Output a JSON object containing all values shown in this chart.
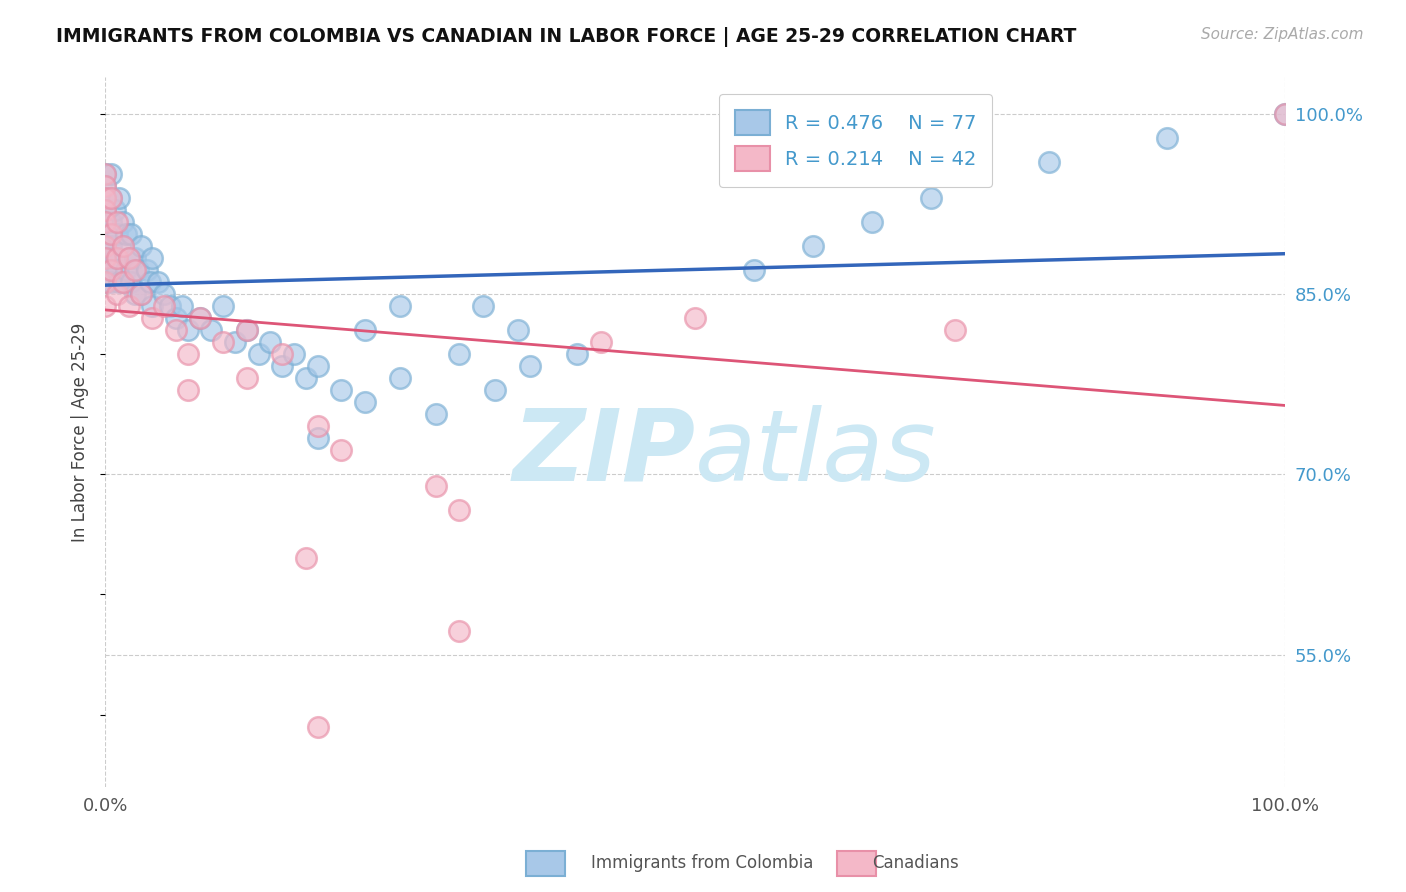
{
  "title": "IMMIGRANTS FROM COLOMBIA VS CANADIAN IN LABOR FORCE | AGE 25-29 CORRELATION CHART",
  "source": "Source: ZipAtlas.com",
  "ylabel": "In Labor Force | Age 25-29",
  "xlim": [
    0.0,
    1.0
  ],
  "ylim": [
    0.44,
    1.03
  ],
  "yticks": [
    0.55,
    0.7,
    0.85,
    1.0
  ],
  "ytick_labels": [
    "55.0%",
    "70.0%",
    "85.0%",
    "100.0%"
  ],
  "xtick_labels": [
    "0.0%",
    "100.0%"
  ],
  "xticks": [
    0.0,
    1.0
  ],
  "legend_r_blue": "R = 0.476",
  "legend_n_blue": "N = 77",
  "legend_r_pink": "R = 0.214",
  "legend_n_pink": "N = 42",
  "blue_color": "#a8c8e8",
  "blue_edge_color": "#7bafd4",
  "pink_color": "#f4b8c8",
  "pink_edge_color": "#e890a8",
  "blue_line_color": "#3366bb",
  "pink_line_color": "#dd5577",
  "legend_text_color": "#4499cc",
  "ytick_color": "#4499cc",
  "watermark_color": "#cce8f4",
  "background_color": "#ffffff",
  "grid_color": "#cccccc",
  "blue_x": [
    0.0,
    0.0,
    0.0,
    0.0,
    0.0,
    0.0,
    0.0,
    0.0,
    0.0,
    0.0,
    0.005,
    0.005,
    0.005,
    0.005,
    0.005,
    0.005,
    0.005,
    0.008,
    0.008,
    0.01,
    0.01,
    0.012,
    0.012,
    0.015,
    0.015,
    0.015,
    0.018,
    0.018,
    0.02,
    0.022,
    0.022,
    0.025,
    0.025,
    0.028,
    0.03,
    0.03,
    0.035,
    0.038,
    0.04,
    0.04,
    0.045,
    0.05,
    0.055,
    0.06,
    0.065,
    0.07,
    0.08,
    0.09,
    0.1,
    0.11,
    0.12,
    0.13,
    0.14,
    0.15,
    0.16,
    0.17,
    0.18,
    0.2,
    0.22,
    0.25,
    0.28,
    0.3,
    0.33,
    0.36,
    0.4,
    0.35,
    0.22,
    0.25,
    0.55,
    0.6,
    0.65,
    0.7,
    0.8,
    0.9,
    1.0,
    0.18,
    0.32
  ],
  "blue_y": [
    0.95,
    0.94,
    0.93,
    0.92,
    0.91,
    0.9,
    0.89,
    0.88,
    0.87,
    0.86,
    0.95,
    0.93,
    0.91,
    0.89,
    0.88,
    0.87,
    0.86,
    0.92,
    0.88,
    0.9,
    0.87,
    0.93,
    0.86,
    0.91,
    0.89,
    0.86,
    0.9,
    0.87,
    0.88,
    0.9,
    0.86,
    0.88,
    0.85,
    0.87,
    0.89,
    0.85,
    0.87,
    0.86,
    0.88,
    0.84,
    0.86,
    0.85,
    0.84,
    0.83,
    0.84,
    0.82,
    0.83,
    0.82,
    0.84,
    0.81,
    0.82,
    0.8,
    0.81,
    0.79,
    0.8,
    0.78,
    0.79,
    0.77,
    0.76,
    0.78,
    0.75,
    0.8,
    0.77,
    0.79,
    0.8,
    0.82,
    0.82,
    0.84,
    0.87,
    0.89,
    0.91,
    0.93,
    0.96,
    0.98,
    1.0,
    0.73,
    0.84
  ],
  "pink_x": [
    0.0,
    0.0,
    0.0,
    0.0,
    0.0,
    0.0,
    0.0,
    0.0,
    0.0,
    0.005,
    0.005,
    0.005,
    0.01,
    0.01,
    0.01,
    0.015,
    0.015,
    0.02,
    0.02,
    0.025,
    0.03,
    0.04,
    0.05,
    0.06,
    0.07,
    0.08,
    0.1,
    0.12,
    0.15,
    0.07,
    0.12,
    0.18,
    0.2,
    0.28,
    0.3,
    0.42,
    0.72,
    0.5,
    0.17,
    0.3,
    0.18,
    1.0
  ],
  "pink_y": [
    0.95,
    0.94,
    0.93,
    0.92,
    0.91,
    0.89,
    0.88,
    0.86,
    0.84,
    0.93,
    0.9,
    0.87,
    0.91,
    0.88,
    0.85,
    0.89,
    0.86,
    0.88,
    0.84,
    0.87,
    0.85,
    0.83,
    0.84,
    0.82,
    0.8,
    0.83,
    0.81,
    0.82,
    0.8,
    0.77,
    0.78,
    0.74,
    0.72,
    0.69,
    0.67,
    0.81,
    0.82,
    0.83,
    0.63,
    0.57,
    0.49,
    1.0
  ]
}
